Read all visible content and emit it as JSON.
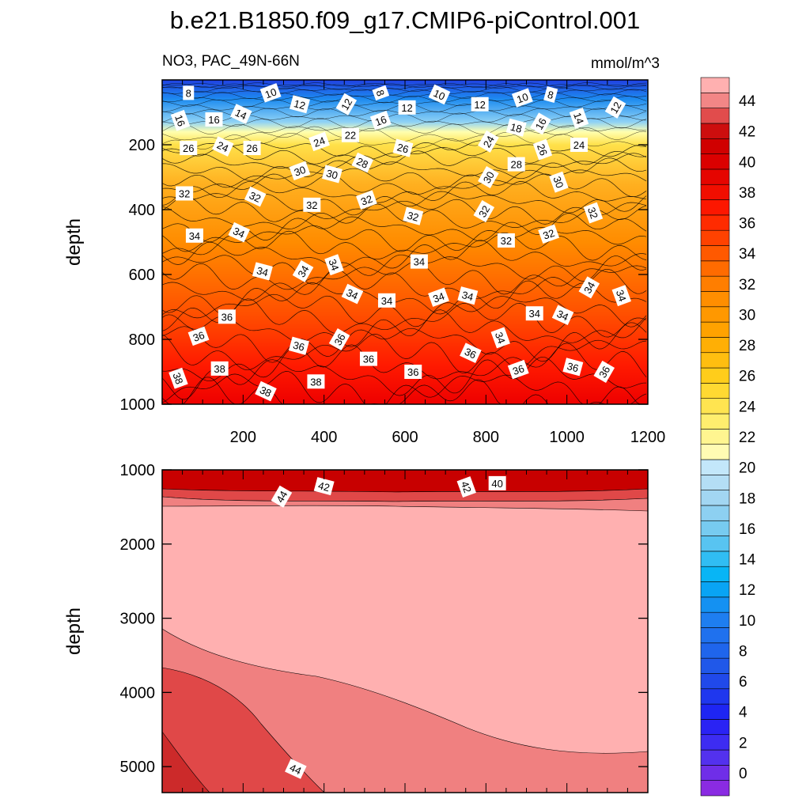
{
  "chart_data": {
    "type": "contour",
    "title": "b.e21.B1850.f09_g17.CMIP6-piControl.001",
    "variable_label": "NO3, PAC_49N-66N",
    "units_label": "mmol/m^3",
    "colors": {
      "low": "#8a2be2",
      "blue_mid": "#1e90ff",
      "blue_light": "#c6e8fb",
      "cream": "#ffffc8",
      "yellow": "#ffe14a",
      "orange": "#ff8c00",
      "red": "#ff1a00",
      "dark_red": "#c80000",
      "pink": "#ffb0b0",
      "salmon": "#f08080",
      "brick": "#e04848"
    },
    "panels": [
      {
        "name": "upper",
        "ylabel": "depth",
        "xlim": [
          0,
          1200
        ],
        "ylim": [
          1000,
          0
        ],
        "x_ticks": [
          "200",
          "400",
          "600",
          "800",
          "1000",
          "1200"
        ],
        "x_tick_values": [
          200,
          400,
          600,
          800,
          1000,
          1200
        ],
        "y_ticks": [
          "200",
          "400",
          "600",
          "800",
          "1000"
        ],
        "y_tick_values": [
          200,
          400,
          600,
          800,
          1000
        ],
        "contour_labels": [
          {
            "text": "8",
            "x": 65,
            "y": 40
          },
          {
            "text": "10",
            "x": 268,
            "y": 40
          },
          {
            "text": "12",
            "x": 340,
            "y": 75
          },
          {
            "text": "12",
            "x": 455,
            "y": 75
          },
          {
            "text": "8",
            "x": 540,
            "y": 40
          },
          {
            "text": "12",
            "x": 605,
            "y": 85
          },
          {
            "text": "10",
            "x": 685,
            "y": 45
          },
          {
            "text": "12",
            "x": 785,
            "y": 75
          },
          {
            "text": "10",
            "x": 890,
            "y": 55
          },
          {
            "text": "8",
            "x": 960,
            "y": 45
          },
          {
            "text": "12",
            "x": 1120,
            "y": 85
          },
          {
            "text": "16",
            "x": 45,
            "y": 125
          },
          {
            "text": "16",
            "x": 128,
            "y": 122
          },
          {
            "text": "14",
            "x": 195,
            "y": 105
          },
          {
            "text": "22",
            "x": 465,
            "y": 170
          },
          {
            "text": "16",
            "x": 540,
            "y": 125
          },
          {
            "text": "18",
            "x": 875,
            "y": 147
          },
          {
            "text": "16",
            "x": 935,
            "y": 135
          },
          {
            "text": "14",
            "x": 1030,
            "y": 118
          },
          {
            "text": "26",
            "x": 65,
            "y": 210
          },
          {
            "text": "24",
            "x": 150,
            "y": 205
          },
          {
            "text": "26",
            "x": 222,
            "y": 210
          },
          {
            "text": "24",
            "x": 388,
            "y": 190
          },
          {
            "text": "26",
            "x": 595,
            "y": 210
          },
          {
            "text": "24",
            "x": 806,
            "y": 190
          },
          {
            "text": "26",
            "x": 940,
            "y": 215
          },
          {
            "text": "24",
            "x": 1030,
            "y": 200
          },
          {
            "text": "28",
            "x": 495,
            "y": 255
          },
          {
            "text": "28",
            "x": 875,
            "y": 260
          },
          {
            "text": "30",
            "x": 340,
            "y": 280
          },
          {
            "text": "30",
            "x": 420,
            "y": 290
          },
          {
            "text": "30",
            "x": 806,
            "y": 300
          },
          {
            "text": "30",
            "x": 980,
            "y": 315
          },
          {
            "text": "32",
            "x": 55,
            "y": 350
          },
          {
            "text": "32",
            "x": 230,
            "y": 360
          },
          {
            "text": "32",
            "x": 370,
            "y": 385
          },
          {
            "text": "32",
            "x": 505,
            "y": 370
          },
          {
            "text": "32",
            "x": 620,
            "y": 420
          },
          {
            "text": "32",
            "x": 795,
            "y": 405
          },
          {
            "text": "32",
            "x": 1065,
            "y": 410
          },
          {
            "text": "34",
            "x": 80,
            "y": 480
          },
          {
            "text": "34",
            "x": 190,
            "y": 470
          },
          {
            "text": "32",
            "x": 850,
            "y": 495
          },
          {
            "text": "32",
            "x": 955,
            "y": 475
          },
          {
            "text": "34",
            "x": 248,
            "y": 590
          },
          {
            "text": "34",
            "x": 348,
            "y": 590
          },
          {
            "text": "34",
            "x": 425,
            "y": 570
          },
          {
            "text": "34",
            "x": 635,
            "y": 560
          },
          {
            "text": "34",
            "x": 470,
            "y": 660
          },
          {
            "text": "34",
            "x": 555,
            "y": 680
          },
          {
            "text": "34",
            "x": 683,
            "y": 670
          },
          {
            "text": "34",
            "x": 755,
            "y": 665
          },
          {
            "text": "34",
            "x": 1055,
            "y": 640
          },
          {
            "text": "34",
            "x": 1135,
            "y": 665
          },
          {
            "text": "34",
            "x": 920,
            "y": 720
          },
          {
            "text": "34",
            "x": 990,
            "y": 725
          },
          {
            "text": "36",
            "x": 160,
            "y": 730
          },
          {
            "text": "36",
            "x": 90,
            "y": 790
          },
          {
            "text": "36",
            "x": 338,
            "y": 820
          },
          {
            "text": "36",
            "x": 438,
            "y": 800
          },
          {
            "text": "34",
            "x": 836,
            "y": 795
          },
          {
            "text": "36",
            "x": 510,
            "y": 860
          },
          {
            "text": "36",
            "x": 762,
            "y": 842
          },
          {
            "text": "36",
            "x": 620,
            "y": 900
          },
          {
            "text": "36",
            "x": 880,
            "y": 893
          },
          {
            "text": "36",
            "x": 1015,
            "y": 885
          },
          {
            "text": "36",
            "x": 1092,
            "y": 900
          },
          {
            "text": "38",
            "x": 40,
            "y": 920
          },
          {
            "text": "38",
            "x": 142,
            "y": 890
          },
          {
            "text": "38",
            "x": 256,
            "y": 960
          },
          {
            "text": "38",
            "x": 380,
            "y": 930
          }
        ]
      },
      {
        "name": "lower",
        "ylabel": "depth",
        "xlim": [
          0,
          1200
        ],
        "ylim": [
          5350,
          1000
        ],
        "y_ticks": [
          "1000",
          "2000",
          "3000",
          "4000",
          "5000"
        ],
        "y_tick_values": [
          1000,
          2000,
          3000,
          4000,
          5000
        ],
        "contour_labels": [
          {
            "text": "42",
            "x": 400,
            "y": 1220
          },
          {
            "text": "44",
            "x": 295,
            "y": 1360
          },
          {
            "text": "42",
            "x": 752,
            "y": 1230
          },
          {
            "text": "40",
            "x": 828,
            "y": 1180
          },
          {
            "text": "44",
            "x": 330,
            "y": 5030
          }
        ]
      }
    ],
    "colorbar": {
      "labels": [
        "0",
        "2",
        "4",
        "6",
        "8",
        "10",
        "12",
        "14",
        "16",
        "18",
        "20",
        "22",
        "24",
        "26",
        "28",
        "30",
        "32",
        "34",
        "36",
        "38",
        "40",
        "42",
        "44"
      ],
      "levels": [
        0,
        2,
        4,
        6,
        8,
        10,
        12,
        14,
        16,
        18,
        20,
        22,
        24,
        26,
        28,
        30,
        32,
        34,
        36,
        38,
        40,
        42,
        44
      ]
    }
  }
}
